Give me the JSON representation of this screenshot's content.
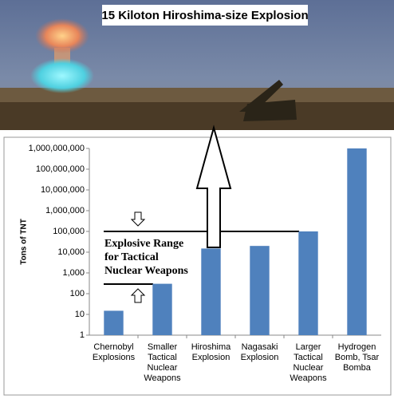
{
  "header": {
    "title": "15 Kiloton Hiroshima-size Explosion"
  },
  "chart_data": {
    "type": "bar",
    "y_label": "Tons of TNT",
    "categories": [
      "Chernobyl Explosions",
      "Smaller Tactical Nuclear Weapons",
      "Hiroshima Explosion",
      "Nagasaki Explosion",
      "Larger Tactical Nuclear Weapons",
      "Hydrogen Bomb, Tsar Bomba"
    ],
    "values": [
      15,
      300,
      15000,
      20000,
      100000,
      1000000000
    ],
    "color": "#4f81bd",
    "log_scale": true,
    "ylim": [
      1,
      1000000000
    ],
    "yticks": [
      1,
      10,
      100,
      {
        "value": 1000,
        "label": "1,000"
      },
      {
        "value": 10000,
        "label": "10,000"
      },
      {
        "value": 100000,
        "label": "100,000"
      },
      {
        "value": 1000000,
        "label": "1,000,000"
      },
      {
        "value": 10000000,
        "label": "10,000,000"
      },
      {
        "value": 100000000,
        "label": "100,000,000"
      },
      {
        "value": 1000000000,
        "label": "1,000,000,000"
      }
    ],
    "annotation": [
      "Explosive Range",
      "for Tactical",
      "Nuclear Weapons"
    ]
  }
}
